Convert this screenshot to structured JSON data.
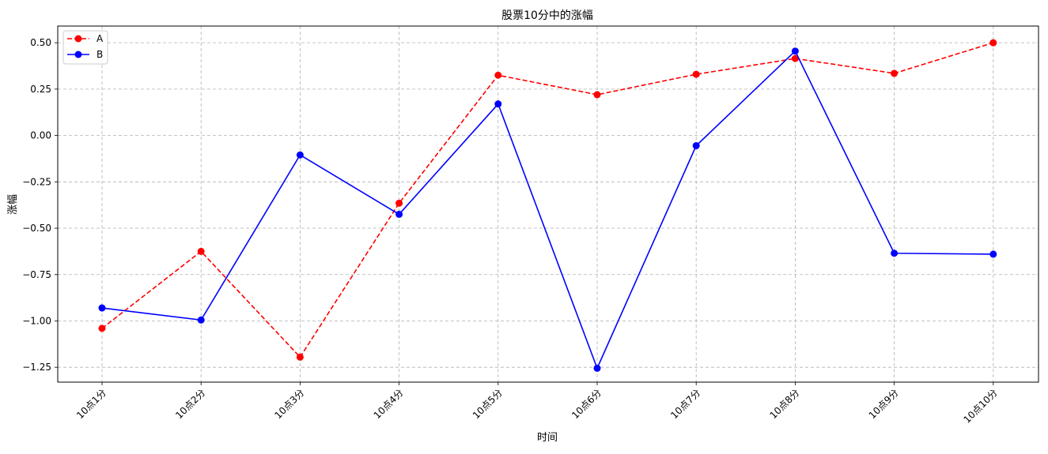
{
  "chart_data": {
    "type": "line",
    "title": "股票10分中的涨幅",
    "xlabel": "时间",
    "ylabel": "涨幅",
    "categories": [
      "10点1分",
      "10点2分",
      "10点3分",
      "10点4分",
      "10点5分",
      "10点6分",
      "10点7分",
      "10点8分",
      "10点9分",
      "10点10分"
    ],
    "ylim": [
      -1.33,
      0.59
    ],
    "yticks": [
      -1.25,
      -1.0,
      -0.75,
      -0.5,
      -0.25,
      0.0,
      0.25,
      0.5
    ],
    "ytick_labels": [
      "−1.25",
      "−1.00",
      "−0.75",
      "−0.50",
      "−0.25",
      "0.00",
      "0.25",
      "0.50"
    ],
    "grid": true,
    "legend_position": "top-left",
    "series": [
      {
        "name": "A",
        "color": "#ff0000",
        "line_style": "dashed",
        "marker": "circle",
        "values": [
          -1.04,
          -0.625,
          -1.195,
          -0.365,
          0.325,
          0.22,
          0.33,
          0.415,
          0.335,
          0.5
        ]
      },
      {
        "name": "B",
        "color": "#0000ff",
        "line_style": "solid",
        "marker": "circle",
        "values": [
          -0.93,
          -0.995,
          -0.105,
          -0.425,
          0.17,
          -1.255,
          -0.055,
          0.455,
          -0.635,
          -0.64
        ]
      }
    ]
  }
}
